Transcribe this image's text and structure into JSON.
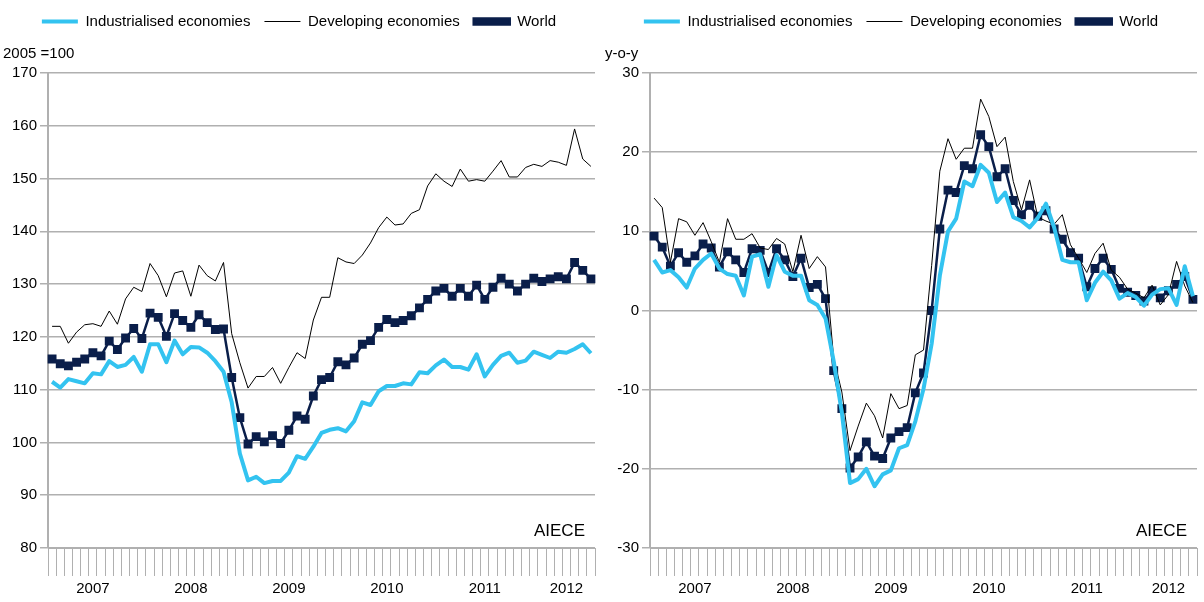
{
  "chart_data": [
    {
      "type": "line",
      "ylabel": "2005 =100",
      "legend": "top",
      "grid": "y",
      "annotations": [
        "AIECE"
      ],
      "categories": [
        null,
        null,
        null,
        null,
        null,
        "2007",
        null,
        null,
        null,
        null,
        null,
        null,
        null,
        null,
        null,
        null,
        null,
        "2008",
        null,
        null,
        null,
        null,
        null,
        null,
        null,
        null,
        null,
        null,
        null,
        "2009",
        null,
        null,
        null,
        null,
        null,
        null,
        null,
        null,
        null,
        null,
        null,
        "2010",
        null,
        null,
        null,
        null,
        null,
        null,
        null,
        null,
        null,
        null,
        null,
        "2011",
        null,
        null,
        null,
        null,
        null,
        null,
        null,
        null,
        null,
        "2012",
        null,
        null,
        null
      ],
      "ylim": [
        80,
        170
      ],
      "yticks": [
        80,
        90,
        100,
        110,
        120,
        130,
        140,
        150,
        160,
        170
      ],
      "series": [
        {
          "name": "Industrialised economies",
          "color": "#33c3f0",
          "marker": "none",
          "values": [
            111.5,
            110.4,
            112.0,
            111.6,
            111.2,
            113.1,
            112.9,
            115.4,
            114.3,
            114.7,
            116.2,
            113.4,
            118.6,
            118.6,
            115.2,
            119.3,
            116.7,
            118.1,
            118.0,
            117.0,
            115.4,
            113.4,
            107.6,
            97.9,
            92.8,
            93.5,
            92.3,
            92.7,
            92.7,
            94.3,
            97.4,
            96.9,
            99.2,
            101.8,
            102.4,
            102.7,
            102.1,
            104.0,
            107.6,
            107.1,
            109.7,
            110.7,
            110.7,
            111.2,
            111.0,
            113.3,
            113.1,
            114.6,
            115.7,
            114.3,
            114.3,
            113.8,
            116.7,
            112.5,
            114.7,
            116.4,
            117.0,
            115.1,
            115.5,
            117.2,
            116.6,
            116.0,
            117.2,
            117.0,
            117.7,
            118.6,
            116.9
          ]
        },
        {
          "name": "Developing economies",
          "color": "#000000",
          "marker": "none",
          "values": [
            122.0,
            122.0,
            118.8,
            120.9,
            122.3,
            122.5,
            122.0,
            124.9,
            122.4,
            127.2,
            129.4,
            128.6,
            133.9,
            131.6,
            127.6,
            132.1,
            132.5,
            127.7,
            133.6,
            131.6,
            130.6,
            134.1,
            120.6,
            115.1,
            110.3,
            112.5,
            112.5,
            114.2,
            111.2,
            114.2,
            117.0,
            115.9,
            123.2,
            127.5,
            127.5,
            135.0,
            134.2,
            133.9,
            135.5,
            137.8,
            140.7,
            142.7,
            141.2,
            141.4,
            143.4,
            144.1,
            148.6,
            150.9,
            149.5,
            148.5,
            151.8,
            149.5,
            149.8,
            149.5,
            151.4,
            153.4,
            150.3,
            150.3,
            152.1,
            152.7,
            152.3,
            153.4,
            153.1,
            152.5,
            159.4,
            153.7,
            152.3
          ]
        },
        {
          "name": "World",
          "color": "#0a1e4a",
          "marker": "square",
          "values": [
            115.8,
            114.9,
            114.5,
            115.2,
            115.8,
            117.0,
            116.4,
            119.2,
            117.6,
            119.8,
            121.6,
            119.7,
            124.5,
            123.7,
            120.1,
            124.4,
            123.1,
            121.8,
            124.2,
            122.7,
            121.4,
            121.5,
            112.3,
            104.7,
            99.7,
            101.1,
            100.1,
            101.3,
            99.8,
            102.3,
            105.0,
            104.4,
            108.8,
            111.9,
            112.3,
            115.3,
            114.7,
            116.0,
            118.6,
            119.3,
            121.8,
            123.3,
            122.7,
            123.1,
            124.0,
            125.5,
            127.1,
            128.7,
            129.2,
            127.7,
            129.2,
            127.7,
            129.8,
            127.1,
            129.4,
            131.1,
            130.0,
            128.7,
            130.0,
            131.1,
            130.5,
            131.0,
            131.4,
            131.0,
            134.1,
            132.6,
            131.0
          ]
        }
      ]
    },
    {
      "type": "line",
      "ylabel": "y-o-y",
      "legend": "top",
      "grid": "y",
      "annotations": [
        "AIECE"
      ],
      "categories": [
        null,
        null,
        null,
        null,
        null,
        "2007",
        null,
        null,
        null,
        null,
        null,
        null,
        null,
        null,
        null,
        null,
        null,
        "2008",
        null,
        null,
        null,
        null,
        null,
        null,
        null,
        null,
        null,
        null,
        null,
        "2009",
        null,
        null,
        null,
        null,
        null,
        null,
        null,
        null,
        null,
        null,
        null,
        "2010",
        null,
        null,
        null,
        null,
        null,
        null,
        null,
        null,
        null,
        null,
        null,
        "2011",
        null,
        null,
        null,
        null,
        null,
        null,
        null,
        null,
        null,
        "2012",
        null,
        null,
        null
      ],
      "ylim": [
        -30,
        30
      ],
      "yticks": [
        -30,
        -20,
        -10,
        0,
        10,
        20,
        30
      ],
      "series": [
        {
          "name": "Industrialised economies",
          "color": "#33c3f0",
          "marker": "none",
          "values": [
            6.4,
            4.8,
            5.1,
            4.2,
            2.9,
            5.3,
            6.4,
            7.2,
            5.3,
            4.6,
            4.4,
            1.9,
            6.8,
            7.1,
            3.0,
            7.0,
            4.9,
            4.4,
            4.4,
            1.3,
            0.7,
            -1.0,
            -6.4,
            -12.9,
            -21.8,
            -21.3,
            -20.0,
            -22.2,
            -20.7,
            -20.2,
            -17.4,
            -17.0,
            -14.0,
            -9.9,
            -4.2,
            4.4,
            10.0,
            11.6,
            16.3,
            15.7,
            18.4,
            17.4,
            13.7,
            14.9,
            11.8,
            11.3,
            10.5,
            11.7,
            13.5,
            10.5,
            6.4,
            6.1,
            6.1,
            1.3,
            3.5,
            4.9,
            3.8,
            1.5,
            2.2,
            1.7,
            0.6,
            2.0,
            2.7,
            2.8,
            0.7,
            5.6,
            1.8
          ]
        },
        {
          "name": "Developing economies",
          "color": "#000000",
          "marker": "none",
          "values": [
            14.2,
            13.0,
            6.1,
            11.6,
            11.2,
            9.5,
            11.1,
            8.7,
            6.1,
            11.6,
            9.0,
            9.0,
            9.7,
            7.9,
            7.7,
            9.1,
            8.4,
            4.9,
            9.5,
            5.3,
            6.8,
            5.5,
            -6.0,
            -10.3,
            -17.7,
            -14.6,
            -11.7,
            -13.3,
            -16.1,
            -10.5,
            -12.4,
            -12.0,
            -5.6,
            -5.0,
            5.7,
            17.6,
            21.7,
            19.1,
            20.5,
            20.5,
            26.7,
            24.5,
            20.7,
            21.9,
            16.3,
            12.7,
            16.5,
            11.8,
            11.3,
            10.9,
            12.1,
            8.3,
            6.6,
            4.8,
            7.2,
            8.5,
            5.1,
            4.2,
            2.7,
            2.2,
            1.6,
            3.2,
            0.7,
            2.0,
            6.2,
            3.1,
            1.0
          ]
        },
        {
          "name": "World",
          "color": "#0a1e4a",
          "marker": "square",
          "values": [
            9.4,
            8.0,
            5.6,
            7.3,
            6.1,
            6.9,
            8.4,
            7.9,
            5.5,
            7.4,
            6.4,
            4.8,
            7.8,
            7.6,
            4.8,
            7.8,
            6.4,
            4.3,
            6.6,
            2.9,
            3.3,
            1.5,
            -7.6,
            -12.4,
            -19.9,
            -18.5,
            -16.6,
            -18.4,
            -18.7,
            -16.1,
            -15.3,
            -14.8,
            -10.4,
            -7.9,
            0.0,
            10.3,
            15.2,
            14.9,
            18.3,
            17.9,
            22.2,
            20.7,
            16.9,
            17.9,
            13.9,
            12.1,
            13.3,
            11.9,
            12.6,
            10.3,
            9.0,
            7.3,
            6.6,
            3.0,
            5.3,
            6.6,
            5.2,
            2.8,
            2.3,
            1.9,
            1.2,
            2.5,
            1.6,
            2.5,
            3.3,
            4.3,
            1.4
          ]
        }
      ]
    }
  ]
}
